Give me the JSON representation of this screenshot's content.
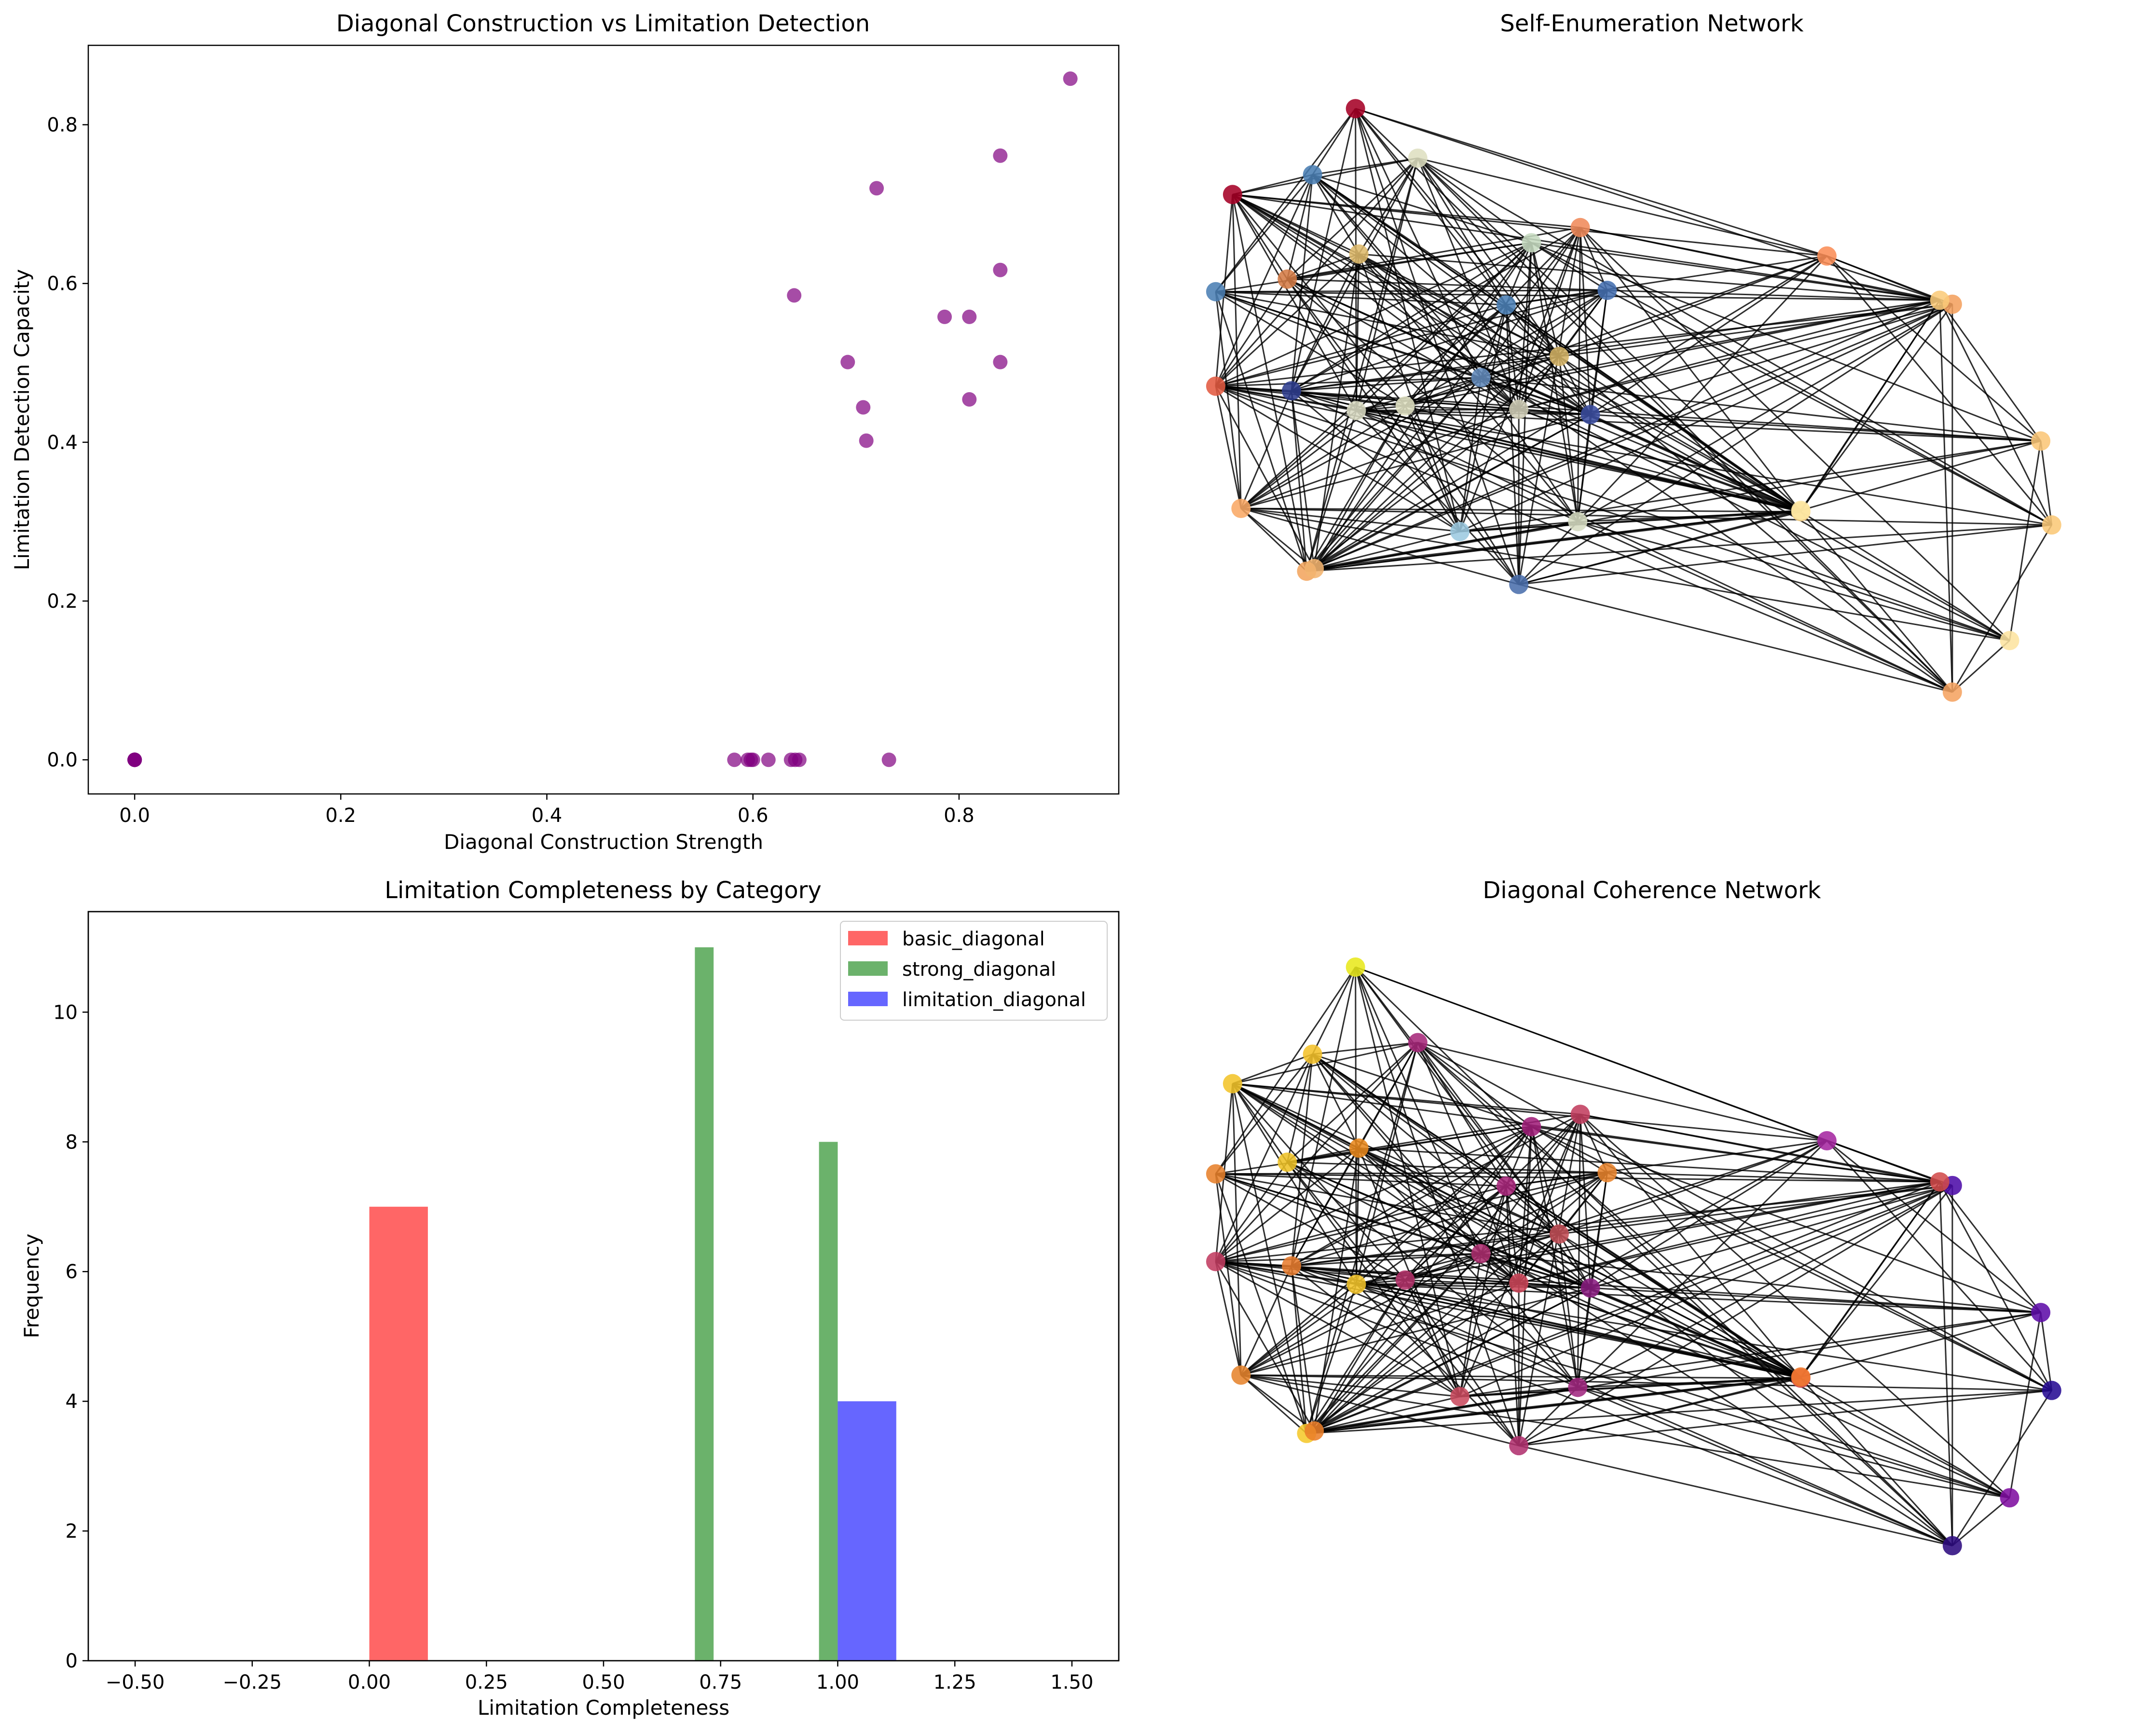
{
  "chart_data": [
    {
      "type": "scatter",
      "title": "Diagonal Construction vs Limitation Detection",
      "xlabel": "Diagonal Construction Strength",
      "ylabel": "Limitation Detection Capacity",
      "xlim": [
        -0.045,
        0.955
      ],
      "ylim": [
        -0.043,
        0.9
      ],
      "xticks": [
        0.0,
        0.2,
        0.4,
        0.6,
        0.8
      ],
      "xtick_labels": [
        "0.0",
        "0.2",
        "0.4",
        "0.6",
        "0.8"
      ],
      "yticks": [
        0.0,
        0.2,
        0.4,
        0.6,
        0.8
      ],
      "ytick_labels": [
        "0.0",
        "0.2",
        "0.4",
        "0.6",
        "0.8"
      ],
      "color": "#800080",
      "points": [
        {
          "x": 0.0,
          "y": 0.0
        },
        {
          "x": 0.0,
          "y": 0.0
        },
        {
          "x": 0.0,
          "y": 0.0
        },
        {
          "x": 0.0,
          "y": 0.0
        },
        {
          "x": 0.0,
          "y": 0.0
        },
        {
          "x": 0.0,
          "y": 0.0
        },
        {
          "x": 0.0,
          "y": 0.0
        },
        {
          "x": 0.582,
          "y": 0.0
        },
        {
          "x": 0.595,
          "y": 0.0
        },
        {
          "x": 0.598,
          "y": 0.0
        },
        {
          "x": 0.6,
          "y": 0.0
        },
        {
          "x": 0.615,
          "y": 0.0
        },
        {
          "x": 0.637,
          "y": 0.0
        },
        {
          "x": 0.641,
          "y": 0.0
        },
        {
          "x": 0.645,
          "y": 0.0
        },
        {
          "x": 0.732,
          "y": 0.0
        },
        {
          "x": 0.64,
          "y": 0.585
        },
        {
          "x": 0.692,
          "y": 0.501
        },
        {
          "x": 0.707,
          "y": 0.444
        },
        {
          "x": 0.71,
          "y": 0.402
        },
        {
          "x": 0.72,
          "y": 0.72
        },
        {
          "x": 0.786,
          "y": 0.558
        },
        {
          "x": 0.81,
          "y": 0.558
        },
        {
          "x": 0.81,
          "y": 0.454
        },
        {
          "x": 0.84,
          "y": 0.761
        },
        {
          "x": 0.84,
          "y": 0.617
        },
        {
          "x": 0.84,
          "y": 0.501
        },
        {
          "x": 0.908,
          "y": 0.858
        }
      ]
    },
    {
      "type": "network",
      "title": "Self-Enumeration Network",
      "node_colors": [
        "#a50026",
        "#a50026",
        "#4a7eb3",
        "#dedfc0",
        "#deb96b",
        "#c6dbc0",
        "#f08a5a",
        "#4b7fb4",
        "#d47b45",
        "#e1e2c4",
        "#4b7fb5",
        "#4570b0",
        "#d3b264",
        "#e35a41",
        "#2f3d8e",
        "#6189b9",
        "#fb8d57",
        "#3b4da0",
        "#f2a55e",
        "#d6dcc1",
        "#cfcdb6",
        "#9ccae0",
        "#dadbc3",
        "#f3b470",
        "#fcd68c",
        "#4a6eac",
        "#f4a15e",
        "#fbc677",
        "#f9a865",
        "#fde4a0",
        "#fde7a3",
        "#fbc878",
        "#f5a361",
        "#fbcb7a"
      ],
      "nodes": [
        {
          "x": 0.166,
          "y": 0.06
        },
        {
          "x": 0.02,
          "y": 0.19
        },
        {
          "x": 0.115,
          "y": 0.16
        },
        {
          "x": 0.24,
          "y": 0.135
        },
        {
          "x": 0.17,
          "y": 0.28
        },
        {
          "x": 0.375,
          "y": 0.263
        },
        {
          "x": 0.433,
          "y": 0.24
        },
        {
          "x": 0.0,
          "y": 0.337
        },
        {
          "x": 0.085,
          "y": 0.318
        },
        {
          "x": 0.225,
          "y": 0.51
        },
        {
          "x": 0.345,
          "y": 0.357
        },
        {
          "x": 0.465,
          "y": 0.335
        },
        {
          "x": 0.408,
          "y": 0.435
        },
        {
          "x": 0.0,
          "y": 0.48
        },
        {
          "x": 0.09,
          "y": 0.487
        },
        {
          "x": 0.315,
          "y": 0.467
        },
        {
          "x": 0.726,
          "y": 0.283
        },
        {
          "x": 0.445,
          "y": 0.523
        },
        {
          "x": 0.108,
          "y": 0.76
        },
        {
          "x": 0.43,
          "y": 0.685
        },
        {
          "x": 0.36,
          "y": 0.515
        },
        {
          "x": 0.29,
          "y": 0.7
        },
        {
          "x": 0.167,
          "y": 0.517
        },
        {
          "x": 0.117,
          "y": 0.756
        },
        {
          "x": 0.695,
          "y": 0.67
        },
        {
          "x": 0.36,
          "y": 0.78
        },
        {
          "x": 0.875,
          "y": 0.356
        },
        {
          "x": 0.98,
          "y": 0.563
        },
        {
          "x": 0.03,
          "y": 0.665
        },
        {
          "x": 0.943,
          "y": 0.865
        },
        {
          "x": 0.695,
          "y": 0.668
        },
        {
          "x": 0.993,
          "y": 0.69
        },
        {
          "x": 0.875,
          "y": 0.943
        },
        {
          "x": 0.86,
          "y": 0.35
        }
      ]
    },
    {
      "type": "histogram",
      "title": "Limitation Completeness by Category",
      "xlabel": "Limitation Completeness",
      "ylabel": "Frequency",
      "xlim": [
        -0.6,
        1.6
      ],
      "ylim": [
        0,
        11.55
      ],
      "xticks": [
        -0.5,
        -0.25,
        0.0,
        0.25,
        0.5,
        0.75,
        1.0,
        1.25,
        1.5
      ],
      "xtick_labels": [
        "−0.50",
        "−0.25",
        "0.00",
        "0.25",
        "0.50",
        "0.75",
        "1.00",
        "1.25",
        "1.50"
      ],
      "yticks": [
        0,
        2,
        4,
        6,
        8,
        10
      ],
      "ytick_labels": [
        "0",
        "2",
        "4",
        "6",
        "8",
        "10"
      ],
      "series": [
        {
          "name": "basic_diagonal",
          "color": "#ff6666",
          "bins": [
            {
              "x0": 0.0,
              "x1": 0.125,
              "count": 7
            }
          ]
        },
        {
          "name": "strong_diagonal",
          "color": "#6bb26b",
          "bins": [
            {
              "x0": 0.695,
              "x1": 0.735,
              "count": 11
            },
            {
              "x0": 0.96,
              "x1": 1.0,
              "count": 8
            }
          ]
        },
        {
          "name": "limitation_diagonal",
          "color": "#6666ff",
          "bins": [
            {
              "x0": 1.0,
              "x1": 1.125,
              "count": 4
            }
          ]
        }
      ]
    },
    {
      "type": "network",
      "title": "Diagonal Coherence Network",
      "node_colors": [
        "#e8e81c",
        "#f2c42a",
        "#f4c22a",
        "#a6287a",
        "#e8891e",
        "#a01f7a",
        "#c23d5e",
        "#e7812b",
        "#eec227",
        "#b23169",
        "#a8277b",
        "#e7832c",
        "#c24e56",
        "#c13c61",
        "#e77c2f",
        "#ac2e6e",
        "#a527a0",
        "#891d80",
        "#f5c82b",
        "#a02880",
        "#cc4659",
        "#c94a5f",
        "#f2c42a",
        "#ea7e29",
        "#d44b4c",
        "#b0316e",
        "#4d0ca8",
        "#5f0ea8",
        "#e6842e",
        "#7f0fa0",
        "#f0792e",
        "#270b93",
        "#2d0b80",
        "#d24b4b"
      ],
      "nodes": [
        {
          "x": 0.166,
          "y": 0.0
        },
        {
          "x": 0.02,
          "y": 0.19
        },
        {
          "x": 0.115,
          "y": 0.142
        },
        {
          "x": 0.24,
          "y": 0.123
        },
        {
          "x": 0.17,
          "y": 0.295
        },
        {
          "x": 0.375,
          "y": 0.26
        },
        {
          "x": 0.433,
          "y": 0.24
        },
        {
          "x": 0.0,
          "y": 0.337
        },
        {
          "x": 0.085,
          "y": 0.318
        },
        {
          "x": 0.225,
          "y": 0.51
        },
        {
          "x": 0.345,
          "y": 0.357
        },
        {
          "x": 0.465,
          "y": 0.335
        },
        {
          "x": 0.408,
          "y": 0.435
        },
        {
          "x": 0.0,
          "y": 0.48
        },
        {
          "x": 0.09,
          "y": 0.487
        },
        {
          "x": 0.315,
          "y": 0.467
        },
        {
          "x": 0.726,
          "y": 0.283
        },
        {
          "x": 0.445,
          "y": 0.523
        },
        {
          "x": 0.108,
          "y": 0.76
        },
        {
          "x": 0.43,
          "y": 0.685
        },
        {
          "x": 0.36,
          "y": 0.515
        },
        {
          "x": 0.29,
          "y": 0.7
        },
        {
          "x": 0.167,
          "y": 0.517
        },
        {
          "x": 0.117,
          "y": 0.756
        },
        {
          "x": 0.695,
          "y": 0.67
        },
        {
          "x": 0.36,
          "y": 0.78
        },
        {
          "x": 0.875,
          "y": 0.356
        },
        {
          "x": 0.98,
          "y": 0.563
        },
        {
          "x": 0.03,
          "y": 0.665
        },
        {
          "x": 0.943,
          "y": 0.865
        },
        {
          "x": 0.695,
          "y": 0.668
        },
        {
          "x": 0.993,
          "y": 0.69
        },
        {
          "x": 0.875,
          "y": 0.943
        },
        {
          "x": 0.86,
          "y": 0.35
        }
      ]
    }
  ]
}
